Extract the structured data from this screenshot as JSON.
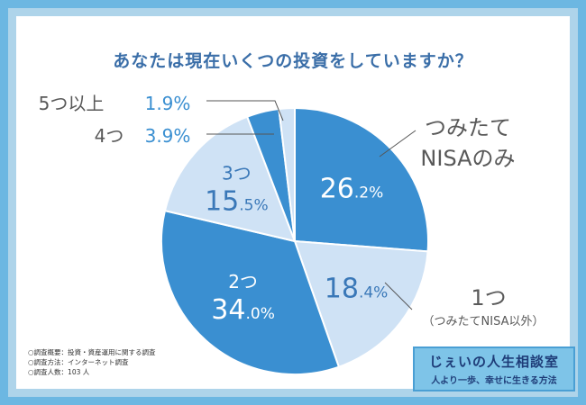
{
  "title": "あなたは現在いくつの投資をしていますか？",
  "chart_data": {
    "type": "pie",
    "title": "あなたは現在いくつの投資をしていますか？",
    "unit": "%",
    "slices": [
      {
        "name": "つみたてNISAのみ",
        "line1": "つみたて",
        "line2": "NISAのみ",
        "value": 26.2,
        "int": "26",
        "dec": ".2%",
        "color": "#3a8fd1"
      },
      {
        "name": "1つ（つみたてNISA以外）",
        "line1": "1つ",
        "line2": "（つみたてNISA以外）",
        "value": 18.4,
        "int": "18",
        "dec": ".4%",
        "color": "#cfe2f5"
      },
      {
        "name": "2つ",
        "line1": "2つ",
        "line2": "",
        "value": 34.0,
        "int": "34",
        "dec": ".0%",
        "color": "#3a8fd1"
      },
      {
        "name": "3つ",
        "line1": "3つ",
        "line2": "",
        "value": 15.5,
        "int": "15",
        "dec": ".5%",
        "color": "#cfe2f5"
      },
      {
        "name": "4つ",
        "line1": "4つ",
        "line2": "",
        "value": 3.9,
        "int": "3",
        "dec": ".9%",
        "color": "#3a8fd1"
      },
      {
        "name": "5つ以上",
        "line1": "5つ以上",
        "line2": "",
        "value": 1.9,
        "int": "1",
        "dec": ".9%",
        "color": "#cfe2f5"
      }
    ]
  },
  "notes": {
    "line1": "○調査概要：投資・資産運用に関する調査",
    "line2": "○調査方法：インターネット調査",
    "line3": "○調査人数：103 人"
  },
  "logo": {
    "line1": "じぇいの人生相談室",
    "line2": "人より一歩、幸せに生きる方法"
  }
}
